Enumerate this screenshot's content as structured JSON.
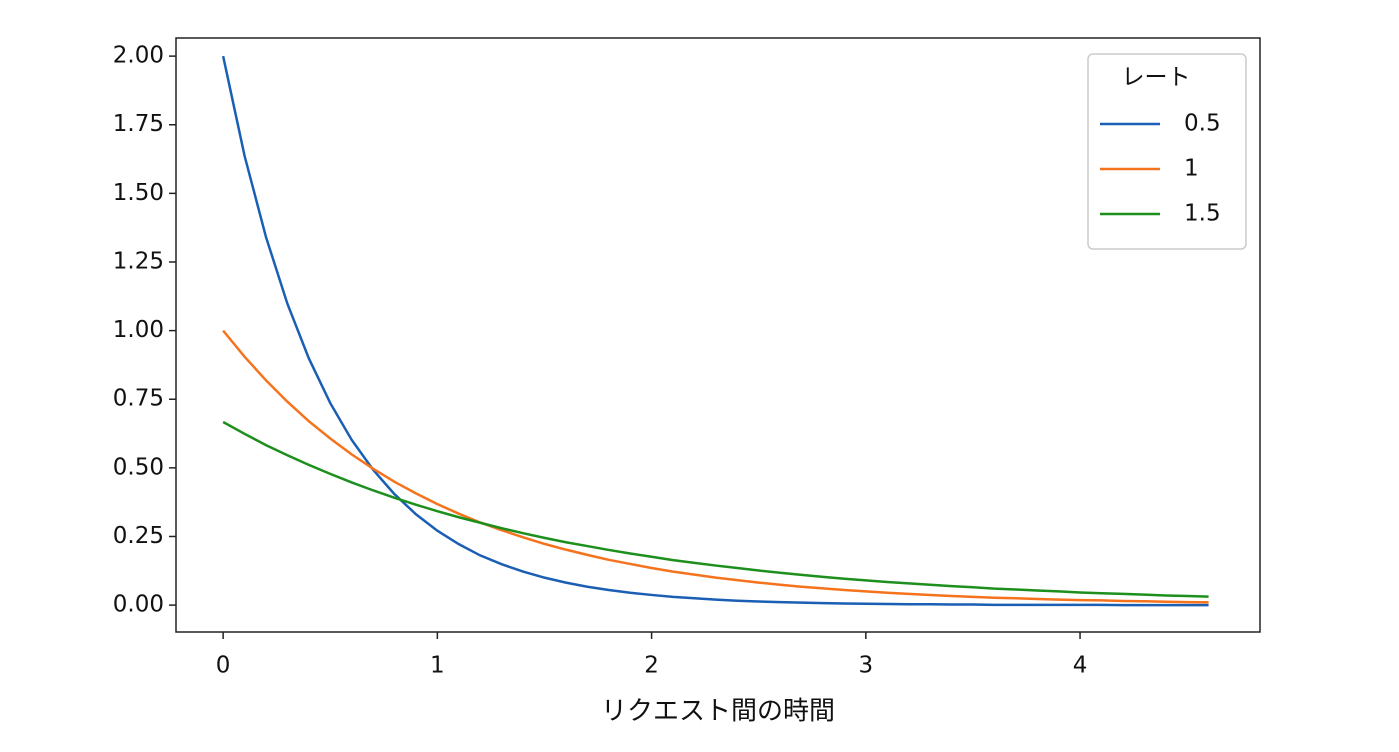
{
  "chart_data": {
    "type": "line",
    "xlabel": "リクエスト間の時間",
    "legend_title": "レート",
    "legend": "upper right",
    "x": [
      0,
      0.1,
      0.2,
      0.3,
      0.4,
      0.5,
      0.6,
      0.7,
      0.8,
      0.9,
      1,
      1.1,
      1.2,
      1.3,
      1.4,
      1.5,
      1.6,
      1.7,
      1.8,
      1.9,
      2,
      2.1,
      2.2,
      2.3,
      2.4,
      2.5,
      2.6,
      2.7,
      2.8,
      2.9,
      3,
      3.1,
      3.2,
      3.3,
      3.4,
      3.5,
      3.6,
      3.7,
      3.8,
      3.9,
      4,
      4.1,
      4.2,
      4.3,
      4.4,
      4.5,
      4.6
    ],
    "series": [
      {
        "name": "0.5",
        "color": "#1a5fb4",
        "values": [
          2,
          1.637,
          1.341,
          1.098,
          0.899,
          0.736,
          0.602,
          0.493,
          0.404,
          0.331,
          0.271,
          0.222,
          0.181,
          0.149,
          0.122,
          0.1,
          0.082,
          0.067,
          0.055,
          0.045,
          0.037,
          0.03,
          0.025,
          0.02,
          0.016,
          0.013,
          0.011,
          0.009,
          0.007,
          0.006,
          0.005,
          0.004,
          0.003,
          0.003,
          0.002,
          0.002,
          0.001,
          0.001,
          0.001,
          0.001,
          0.001,
          0.001,
          0,
          0,
          0,
          0,
          0
        ]
      },
      {
        "name": "1",
        "color": "#f5731c",
        "values": [
          1,
          0.905,
          0.819,
          0.741,
          0.67,
          0.607,
          0.549,
          0.497,
          0.449,
          0.407,
          0.368,
          0.333,
          0.301,
          0.273,
          0.247,
          0.223,
          0.202,
          0.183,
          0.165,
          0.15,
          0.135,
          0.122,
          0.111,
          0.1,
          0.091,
          0.082,
          0.074,
          0.067,
          0.061,
          0.055,
          0.05,
          0.045,
          0.041,
          0.037,
          0.033,
          0.03,
          0.027,
          0.025,
          0.022,
          0.02,
          0.018,
          0.017,
          0.015,
          0.014,
          0.012,
          0.011,
          0.01
        ]
      },
      {
        "name": "1.5",
        "color": "#1d8f1d",
        "values": [
          0.667,
          0.624,
          0.583,
          0.546,
          0.511,
          0.478,
          0.447,
          0.418,
          0.391,
          0.366,
          0.342,
          0.32,
          0.3,
          0.28,
          0.262,
          0.245,
          0.229,
          0.215,
          0.201,
          0.188,
          0.176,
          0.164,
          0.154,
          0.144,
          0.135,
          0.126,
          0.118,
          0.11,
          0.103,
          0.096,
          0.09,
          0.084,
          0.079,
          0.074,
          0.069,
          0.065,
          0.06,
          0.057,
          0.053,
          0.05,
          0.046,
          0.043,
          0.041,
          0.038,
          0.035,
          0.033,
          0.031
        ]
      }
    ],
    "xlim": [
      -0.22,
      4.84
    ],
    "ylim": [
      -0.098,
      2.066
    ],
    "xticks": [
      0,
      1,
      2,
      3,
      4
    ],
    "yticks": [
      {
        "value": 0,
        "label": "0.00"
      },
      {
        "value": 0.25,
        "label": "0.25"
      },
      {
        "value": 0.5,
        "label": "0.50"
      },
      {
        "value": 0.75,
        "label": "0.75"
      },
      {
        "value": 1,
        "label": "1.00"
      },
      {
        "value": 1.25,
        "label": "1.25"
      },
      {
        "value": 1.5,
        "label": "1.50"
      },
      {
        "value": 1.75,
        "label": "1.75"
      },
      {
        "value": 2,
        "label": "2.00"
      }
    ]
  }
}
